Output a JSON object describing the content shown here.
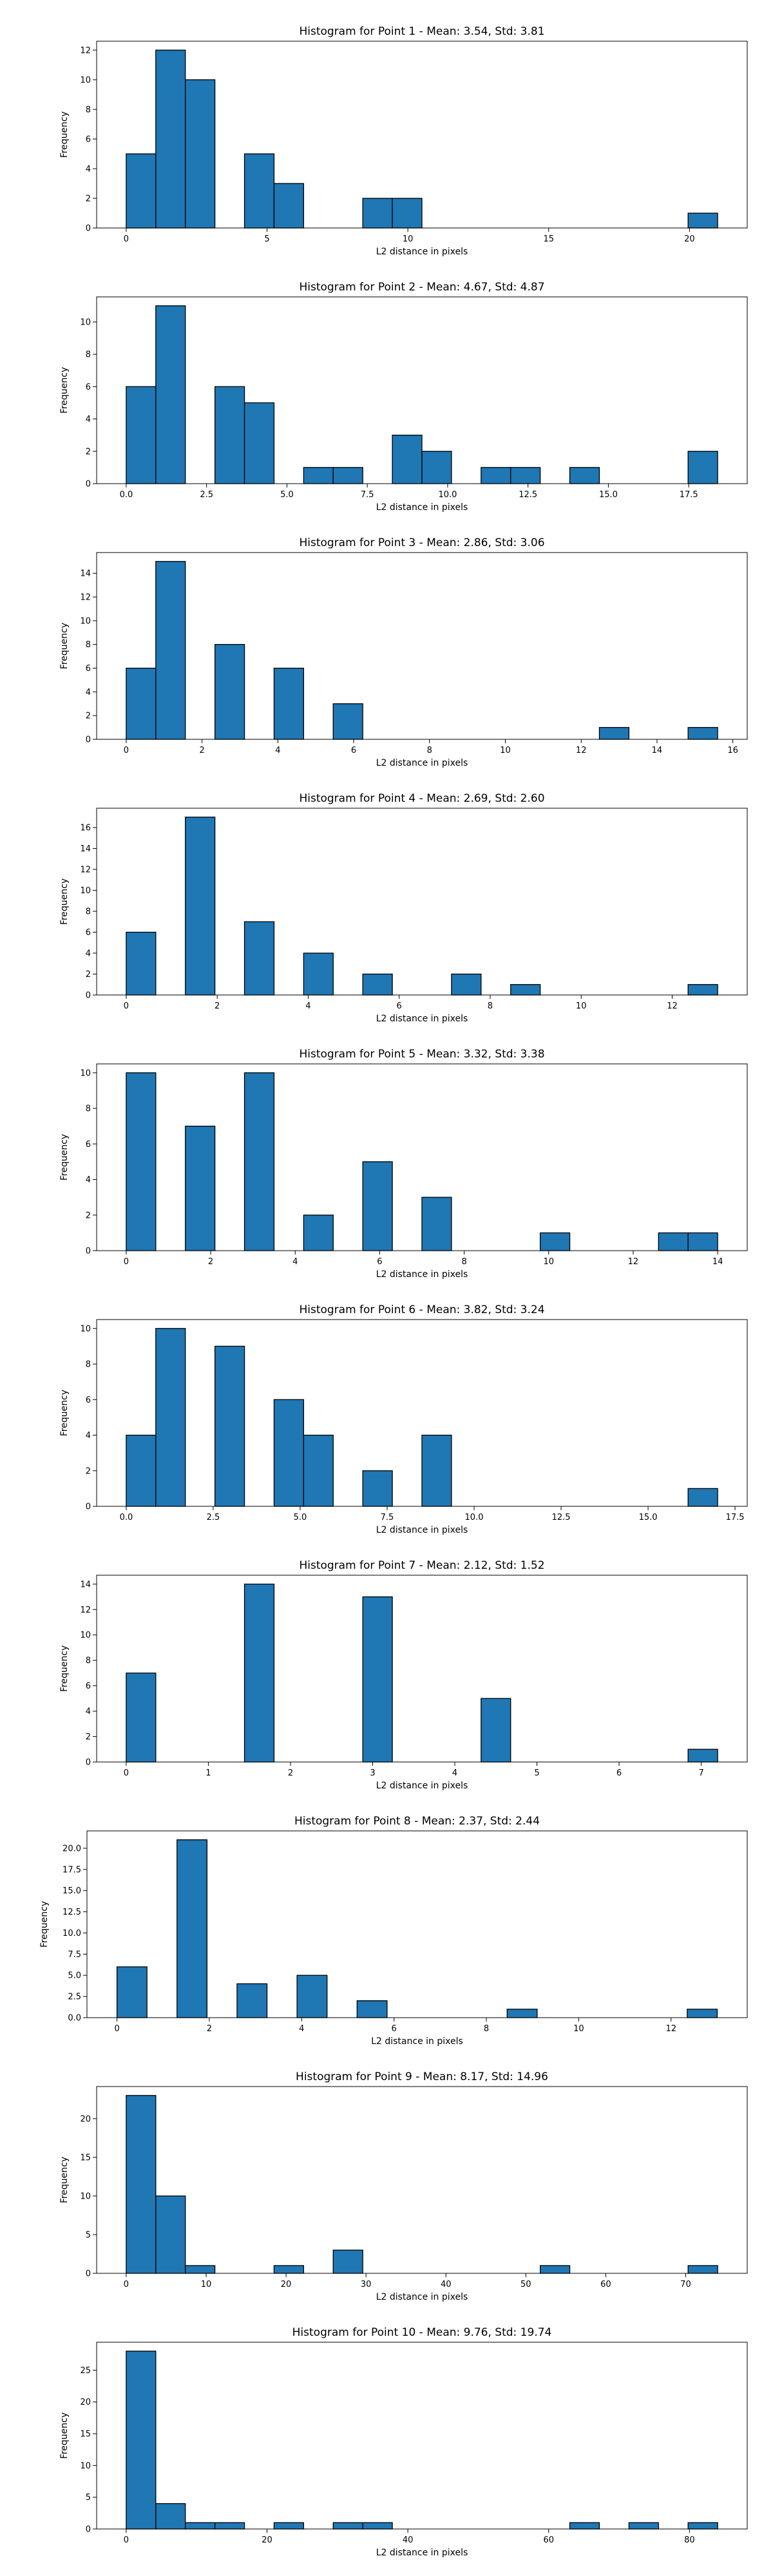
{
  "chart_data": [
    {
      "type": "bar",
      "title": "Histogram for Point 1 - Mean: 3.54, Std: 3.81",
      "xlabel": "L2 distance in pixels",
      "ylabel": "Frequency",
      "xlim": [
        -1.05,
        22.05
      ],
      "ylim": [
        0,
        12.6
      ],
      "xticks": [
        0,
        5,
        10,
        15,
        20
      ],
      "yticks": [
        0,
        2,
        4,
        6,
        8,
        10,
        12
      ],
      "grid": false,
      "bins": [
        {
          "x0": 0.0,
          "x1": 1.05,
          "count": 5
        },
        {
          "x0": 1.05,
          "x1": 2.1,
          "count": 12
        },
        {
          "x0": 2.1,
          "x1": 3.15,
          "count": 10
        },
        {
          "x0": 4.2,
          "x1": 5.25,
          "count": 5
        },
        {
          "x0": 5.25,
          "x1": 6.3,
          "count": 3
        },
        {
          "x0": 8.4,
          "x1": 9.45,
          "count": 2
        },
        {
          "x0": 9.45,
          "x1": 10.5,
          "count": 2
        },
        {
          "x0": 19.95,
          "x1": 21.0,
          "count": 1
        }
      ]
    },
    {
      "type": "bar",
      "title": "Histogram for Point 2 - Mean: 4.67, Std: 4.87",
      "xlabel": "L2 distance in pixels",
      "ylabel": "Frequency",
      "xlim": [
        -0.92,
        19.32
      ],
      "ylim": [
        0,
        11.55
      ],
      "xticks": [
        0.0,
        2.5,
        5.0,
        7.5,
        10.0,
        12.5,
        15.0,
        17.5
      ],
      "yticks": [
        0,
        2,
        4,
        6,
        8,
        10
      ],
      "grid": false,
      "bins": [
        {
          "x0": 0.0,
          "x1": 0.92,
          "count": 6
        },
        {
          "x0": 0.92,
          "x1": 1.84,
          "count": 11
        },
        {
          "x0": 2.76,
          "x1": 3.68,
          "count": 6
        },
        {
          "x0": 3.68,
          "x1": 4.6,
          "count": 5
        },
        {
          "x0": 5.52,
          "x1": 6.44,
          "count": 1
        },
        {
          "x0": 6.44,
          "x1": 7.36,
          "count": 1
        },
        {
          "x0": 8.28,
          "x1": 9.2,
          "count": 3
        },
        {
          "x0": 9.2,
          "x1": 10.12,
          "count": 2
        },
        {
          "x0": 11.04,
          "x1": 11.96,
          "count": 1
        },
        {
          "x0": 11.96,
          "x1": 12.88,
          "count": 1
        },
        {
          "x0": 13.8,
          "x1": 14.72,
          "count": 1
        },
        {
          "x0": 17.48,
          "x1": 18.4,
          "count": 2
        }
      ]
    },
    {
      "type": "bar",
      "title": "Histogram for Point 3 - Mean: 2.86, Std: 3.06",
      "xlabel": "L2 distance in pixels",
      "ylabel": "Frequency",
      "xlim": [
        -0.78,
        16.38
      ],
      "ylim": [
        0,
        15.75
      ],
      "xticks": [
        0,
        2,
        4,
        6,
        8,
        10,
        12,
        14,
        16
      ],
      "yticks": [
        0,
        2,
        4,
        6,
        8,
        10,
        12,
        14
      ],
      "grid": false,
      "bins": [
        {
          "x0": 0.0,
          "x1": 0.78,
          "count": 6
        },
        {
          "x0": 0.78,
          "x1": 1.56,
          "count": 15
        },
        {
          "x0": 2.34,
          "x1": 3.12,
          "count": 8
        },
        {
          "x0": 3.9,
          "x1": 4.68,
          "count": 6
        },
        {
          "x0": 5.46,
          "x1": 6.24,
          "count": 3
        },
        {
          "x0": 12.48,
          "x1": 13.26,
          "count": 1
        },
        {
          "x0": 14.82,
          "x1": 15.6,
          "count": 1
        }
      ]
    },
    {
      "type": "bar",
      "title": "Histogram for Point 4 - Mean: 2.69, Std: 2.60",
      "xlabel": "L2 distance in pixels",
      "ylabel": "Frequency",
      "xlim": [
        -0.65,
        13.65
      ],
      "ylim": [
        0,
        17.85
      ],
      "xticks": [
        0,
        2,
        4,
        6,
        8,
        10,
        12
      ],
      "yticks": [
        0,
        2,
        4,
        6,
        8,
        10,
        12,
        14,
        16
      ],
      "grid": false,
      "bins": [
        {
          "x0": 0.0,
          "x1": 0.65,
          "count": 6
        },
        {
          "x0": 1.3,
          "x1": 1.95,
          "count": 17
        },
        {
          "x0": 2.6,
          "x1": 3.25,
          "count": 7
        },
        {
          "x0": 3.9,
          "x1": 4.55,
          "count": 4
        },
        {
          "x0": 5.2,
          "x1": 5.85,
          "count": 2
        },
        {
          "x0": 7.15,
          "x1": 7.8,
          "count": 2
        },
        {
          "x0": 8.45,
          "x1": 9.1,
          "count": 1
        },
        {
          "x0": 12.35,
          "x1": 13.0,
          "count": 1
        }
      ]
    },
    {
      "type": "bar",
      "title": "Histogram for Point 5 - Mean: 3.32, Std: 3.38",
      "xlabel": "L2 distance in pixels",
      "ylabel": "Frequency",
      "xlim": [
        -0.7,
        14.7
      ],
      "ylim": [
        0,
        10.5
      ],
      "xticks": [
        0,
        2,
        4,
        6,
        8,
        10,
        12,
        14
      ],
      "yticks": [
        0,
        2,
        4,
        6,
        8,
        10
      ],
      "grid": false,
      "bins": [
        {
          "x0": 0.0,
          "x1": 0.7,
          "count": 10
        },
        {
          "x0": 1.4,
          "x1": 2.1,
          "count": 7
        },
        {
          "x0": 2.8,
          "x1": 3.5,
          "count": 10
        },
        {
          "x0": 4.2,
          "x1": 4.9,
          "count": 2
        },
        {
          "x0": 5.6,
          "x1": 6.3,
          "count": 5
        },
        {
          "x0": 7.0,
          "x1": 7.7,
          "count": 3
        },
        {
          "x0": 9.8,
          "x1": 10.5,
          "count": 1
        },
        {
          "x0": 12.6,
          "x1": 13.3,
          "count": 1
        },
        {
          "x0": 13.3,
          "x1": 14.0,
          "count": 1
        }
      ]
    },
    {
      "type": "bar",
      "title": "Histogram for Point 6 - Mean: 3.82, Std: 3.24",
      "xlabel": "L2 distance in pixels",
      "ylabel": "Frequency",
      "xlim": [
        -0.85,
        17.85
      ],
      "ylim": [
        0,
        10.5
      ],
      "xticks": [
        0.0,
        2.5,
        5.0,
        7.5,
        10.0,
        12.5,
        15.0,
        17.5
      ],
      "yticks": [
        0,
        2,
        4,
        6,
        8,
        10
      ],
      "grid": false,
      "bins": [
        {
          "x0": 0.0,
          "x1": 0.85,
          "count": 4
        },
        {
          "x0": 0.85,
          "x1": 1.7,
          "count": 10
        },
        {
          "x0": 2.55,
          "x1": 3.4,
          "count": 9
        },
        {
          "x0": 4.25,
          "x1": 5.1,
          "count": 6
        },
        {
          "x0": 5.1,
          "x1": 5.95,
          "count": 4
        },
        {
          "x0": 6.8,
          "x1": 7.65,
          "count": 2
        },
        {
          "x0": 8.5,
          "x1": 9.35,
          "count": 4
        },
        {
          "x0": 16.15,
          "x1": 17.0,
          "count": 1
        }
      ]
    },
    {
      "type": "bar",
      "title": "Histogram for Point 7 - Mean: 2.12, Std: 1.52",
      "xlabel": "L2 distance in pixels",
      "ylabel": "Frequency",
      "xlim": [
        -0.36,
        7.56
      ],
      "ylim": [
        0,
        14.7
      ],
      "xticks": [
        0,
        1,
        2,
        3,
        4,
        5,
        6,
        7
      ],
      "yticks": [
        0,
        2,
        4,
        6,
        8,
        10,
        12,
        14
      ],
      "grid": false,
      "bins": [
        {
          "x0": 0.0,
          "x1": 0.36,
          "count": 7
        },
        {
          "x0": 1.44,
          "x1": 1.8,
          "count": 14
        },
        {
          "x0": 2.88,
          "x1": 3.24,
          "count": 13
        },
        {
          "x0": 4.32,
          "x1": 4.68,
          "count": 5
        },
        {
          "x0": 6.84,
          "x1": 7.2,
          "count": 1
        }
      ]
    },
    {
      "type": "bar",
      "title": "Histogram for Point 8 - Mean: 2.37, Std: 2.44",
      "xlabel": "L2 distance in pixels",
      "ylabel": "Frequency",
      "xlim": [
        -0.65,
        13.65
      ],
      "ylim": [
        0,
        22.05
      ],
      "xticks": [
        0,
        2,
        4,
        6,
        8,
        10,
        12
      ],
      "yticks": [
        0.0,
        2.5,
        5.0,
        7.5,
        10.0,
        12.5,
        15.0,
        17.5,
        20.0
      ],
      "yticks_decimals": 1,
      "grid": false,
      "bins": [
        {
          "x0": 0.0,
          "x1": 0.65,
          "count": 6
        },
        {
          "x0": 1.3,
          "x1": 1.95,
          "count": 21
        },
        {
          "x0": 2.6,
          "x1": 3.25,
          "count": 4
        },
        {
          "x0": 3.9,
          "x1": 4.55,
          "count": 5
        },
        {
          "x0": 5.2,
          "x1": 5.85,
          "count": 2
        },
        {
          "x0": 8.45,
          "x1": 9.1,
          "count": 1
        },
        {
          "x0": 12.35,
          "x1": 13.0,
          "count": 1
        }
      ]
    },
    {
      "type": "bar",
      "title": "Histogram for Point 9 - Mean: 8.17, Std: 14.96",
      "xlabel": "L2 distance in pixels",
      "ylabel": "Frequency",
      "xlim": [
        -3.7,
        77.7
      ],
      "ylim": [
        0,
        24.15
      ],
      "xticks": [
        0,
        10,
        20,
        30,
        40,
        50,
        60,
        70
      ],
      "yticks": [
        0,
        5,
        10,
        15,
        20
      ],
      "grid": false,
      "bins": [
        {
          "x0": 0.0,
          "x1": 3.7,
          "count": 23
        },
        {
          "x0": 3.7,
          "x1": 7.4,
          "count": 10
        },
        {
          "x0": 7.4,
          "x1": 11.1,
          "count": 1
        },
        {
          "x0": 18.5,
          "x1": 22.2,
          "count": 1
        },
        {
          "x0": 25.9,
          "x1": 29.6,
          "count": 3
        },
        {
          "x0": 51.8,
          "x1": 55.5,
          "count": 1
        },
        {
          "x0": 70.3,
          "x1": 74.0,
          "count": 1
        }
      ]
    },
    {
      "type": "bar",
      "title": "Histogram for Point 10 - Mean: 9.76, Std: 19.74",
      "xlabel": "L2 distance in pixels",
      "ylabel": "Frequency",
      "xlim": [
        -4.2,
        88.2
      ],
      "ylim": [
        0,
        29.4
      ],
      "xticks": [
        0,
        20,
        40,
        60,
        80
      ],
      "yticks": [
        0,
        5,
        10,
        15,
        20,
        25
      ],
      "grid": false,
      "bins": [
        {
          "x0": 0.0,
          "x1": 4.2,
          "count": 28
        },
        {
          "x0": 4.2,
          "x1": 8.4,
          "count": 4
        },
        {
          "x0": 8.4,
          "x1": 12.6,
          "count": 1
        },
        {
          "x0": 12.6,
          "x1": 16.8,
          "count": 1
        },
        {
          "x0": 21.0,
          "x1": 25.2,
          "count": 1
        },
        {
          "x0": 29.4,
          "x1": 33.6,
          "count": 1
        },
        {
          "x0": 33.6,
          "x1": 37.8,
          "count": 1
        },
        {
          "x0": 63.0,
          "x1": 67.2,
          "count": 1
        },
        {
          "x0": 71.4,
          "x1": 75.6,
          "count": 1
        },
        {
          "x0": 79.8,
          "x1": 84.0,
          "count": 1
        }
      ]
    }
  ],
  "style": {
    "bar_fill": "#1f77b4",
    "bar_edge": "#000000",
    "axis_color": "#000000",
    "background": "#ffffff"
  }
}
